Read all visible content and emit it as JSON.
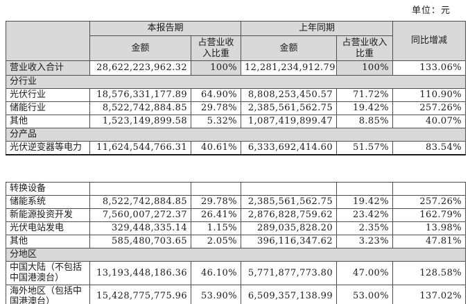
{
  "unit_label": "单位：元",
  "table_headers": {
    "current_period": "本报告期",
    "prior_period": "上年同期",
    "amount": "金额",
    "pct_of_revenue": "占营业收入比重",
    "yoy_change": "同比增减"
  },
  "colors": {
    "header_bg": "#d9d9d9",
    "border": "#4d4d4d",
    "text": "#1a1a1a"
  },
  "table1_rows": [
    {
      "type": "data",
      "label": "营业收入合计",
      "amount1": "28,622,223,962.32",
      "pct1": "100%",
      "amount2": "12,281,234,912.79",
      "pct2": "100%",
      "yoy": "133.06%",
      "highlight": true
    },
    {
      "type": "section",
      "label": "分行业"
    },
    {
      "type": "data",
      "label": "光伏行业",
      "amount1": "18,576,331,177.89",
      "pct1": "64.90%",
      "amount2": "8,808,253,450.57",
      "pct2": "71.72%",
      "yoy": "110.90%"
    },
    {
      "type": "data",
      "label": "储能行业",
      "amount1": "8,522,742,884.85",
      "pct1": "29.78%",
      "amount2": "2,385,561,562.75",
      "pct2": "19.42%",
      "yoy": "257.26%"
    },
    {
      "type": "data",
      "label": "其他",
      "amount1": "1,523,149,899.58",
      "pct1": "5.32%",
      "amount2": "1,087,419,899.47",
      "pct2": "8.85%",
      "yoy": "40.07%"
    },
    {
      "type": "section",
      "label": "分产品"
    },
    {
      "type": "data",
      "label": "光伏逆变器等电力",
      "amount1": "11,624,544,766.31",
      "pct1": "40.61%",
      "amount2": "6,333,692,414.60",
      "pct2": "51.57%",
      "yoy": "83.54%"
    }
  ],
  "table2_rows": [
    {
      "type": "data",
      "label": "转换设备",
      "amount1": "",
      "pct1": "",
      "amount2": "",
      "pct2": "",
      "yoy": ""
    },
    {
      "type": "data",
      "label": "储能系统",
      "amount1": "8,522,742,884.85",
      "pct1": "29.78%",
      "amount2": "2,385,561,562.75",
      "pct2": "19.42%",
      "yoy": "257.26%"
    },
    {
      "type": "data",
      "label": "新能源投资开发",
      "amount1": "7,560,007,272.37",
      "pct1": "26.41%",
      "amount2": "2,876,828,759.62",
      "pct2": "23.42%",
      "yoy": "162.79%"
    },
    {
      "type": "data",
      "label": "光伏电站发电",
      "amount1": "329,448,335.14",
      "pct1": "1.15%",
      "amount2": "289,035,828.20",
      "pct2": "2.35%",
      "yoy": "13.98%"
    },
    {
      "type": "data",
      "label": "其他",
      "amount1": "585,480,703.65",
      "pct1": "2.05%",
      "amount2": "396,116,347.62",
      "pct2": "3.23%",
      "yoy": "47.81%"
    },
    {
      "type": "section",
      "label": "分地区"
    },
    {
      "type": "data",
      "label": "中国大陆（不包括中国港澳台）",
      "amount1": "13,193,448,186.36",
      "pct1": "46.10%",
      "amount2": "5,771,877,773.80",
      "pct2": "47.00%",
      "yoy": "128.58%"
    },
    {
      "type": "data",
      "label": "海外地区（包括中国港澳台）",
      "amount1": "15,428,775,775.96",
      "pct1": "53.90%",
      "amount2": "6,509,357,138.99",
      "pct2": "53.00%",
      "yoy": "137.02%"
    }
  ]
}
